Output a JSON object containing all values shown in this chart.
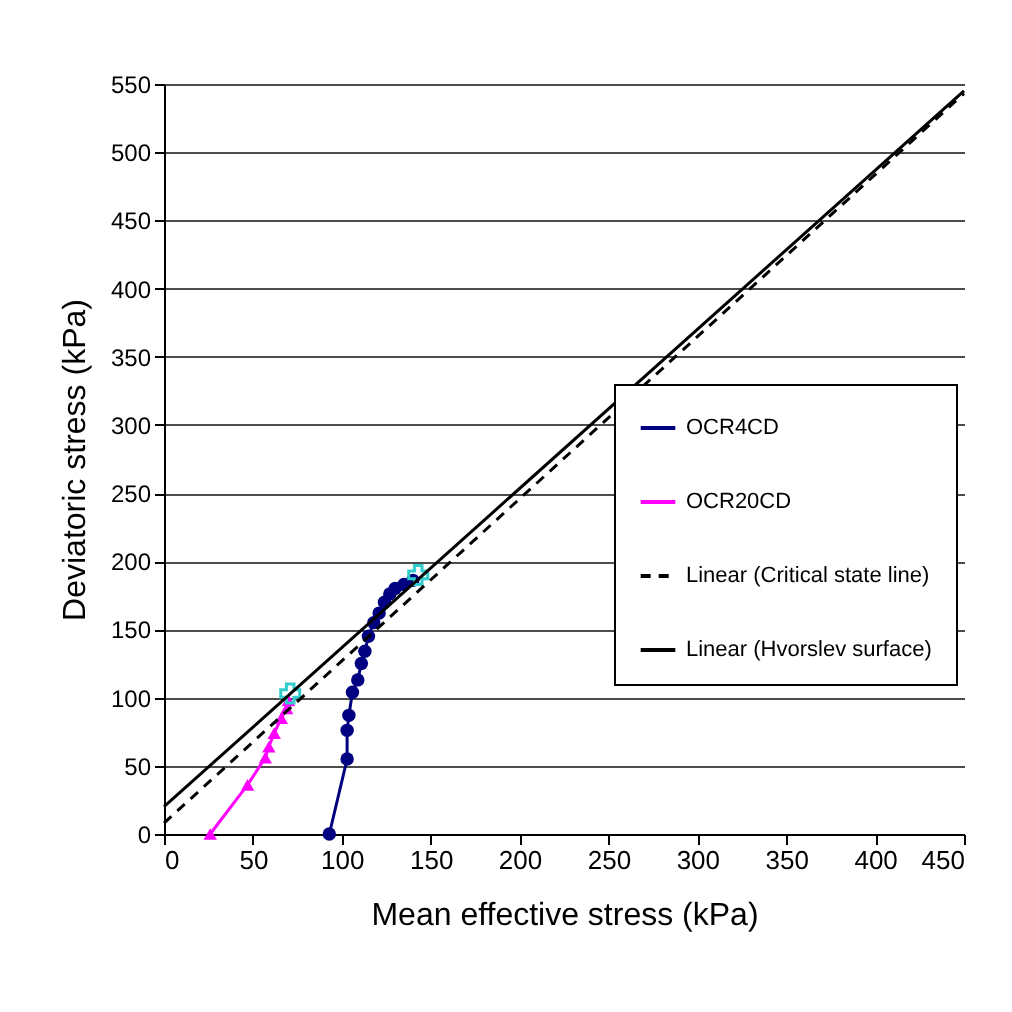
{
  "chart_data": {
    "type": "line",
    "xlabel": "Mean effective stress (kPa)",
    "ylabel": "Deviatoric stress (kPa)",
    "xlim": [
      0,
      450
    ],
    "xticks": [
      0,
      50,
      100,
      150,
      200,
      250,
      300,
      350,
      400,
      450
    ],
    "ylim": [
      0,
      550
    ],
    "yticks": [
      0,
      50,
      100,
      150,
      200,
      250,
      300,
      350,
      400,
      450,
      500,
      550
    ],
    "grid": "y",
    "legend": "right",
    "series": [
      {
        "name": "OCR4CD",
        "marker": "circle",
        "color": "#000080",
        "x": [
          93,
          103,
          103,
          104,
          106,
          109,
          111,
          113,
          115,
          118,
          121,
          124,
          127,
          130,
          135,
          140
        ],
        "values": [
          0,
          55,
          76,
          87,
          104,
          113,
          125,
          134,
          145,
          155,
          162,
          170,
          176,
          180,
          183,
          186
        ]
      },
      {
        "name": "OCR20CD",
        "marker": "triangle",
        "color": "#ff00ff",
        "x": [
          26,
          47,
          57,
          59,
          62,
          66,
          69,
          70
        ],
        "values": [
          0,
          36,
          56,
          64,
          74,
          85,
          92,
          98
        ]
      },
      {
        "type": "scatter",
        "marker": "cross",
        "color": "#33cccc",
        "x": [
          71,
          143
        ],
        "values": [
          103,
          190
        ]
      },
      {
        "name": "Linear (Critical state line)",
        "marker": "none",
        "line_style": "dashed",
        "color": "#000000",
        "x": [
          0,
          450
        ],
        "values": [
          8,
          543
        ]
      },
      {
        "name": "Linear (Hvorslev surface)",
        "marker": "none",
        "line_style": "solid",
        "color": "#000000",
        "x": [
          0,
          450
        ],
        "values": [
          20,
          545
        ]
      }
    ]
  }
}
